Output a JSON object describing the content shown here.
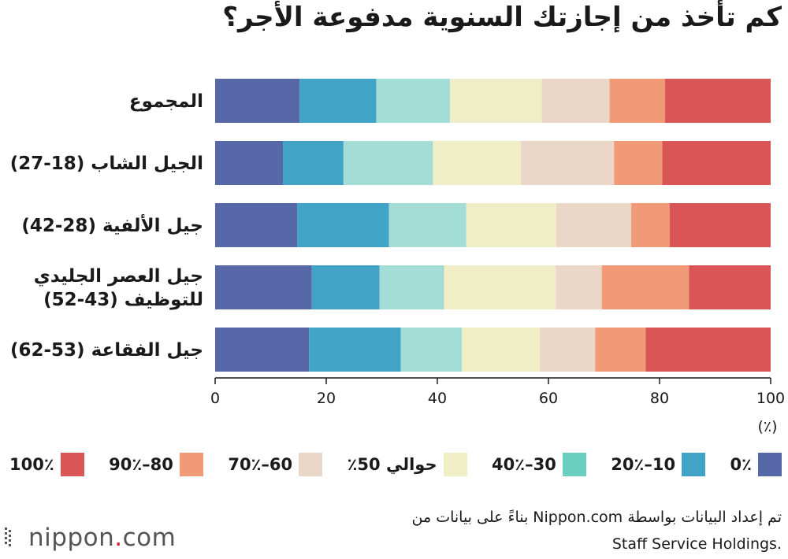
{
  "title": "كم تأخذ من إجازتك السنوية مدفوعة الأجر؟",
  "chart_data": {
    "type": "bar",
    "orientation": "horizontal",
    "stacked": true,
    "categories": [
      "المجموع",
      "الجيل الشاب (18-27)",
      "جيل الألفية (28-42)",
      "جيل العصر الجليدي للتوظيف (43-52)",
      "جيل الفقاعة (53-62)"
    ],
    "category_lines": [
      [
        "المجموع"
      ],
      [
        "الجيل الشاب (18-27)"
      ],
      [
        "جيل الألفية (28-42)"
      ],
      [
        "جيل العصر الجليدي",
        "للتوظيف (43-52)"
      ],
      [
        "جيل الفقاعة (53-62)"
      ]
    ],
    "series": [
      {
        "name": "0٪",
        "color": "#5668a8",
        "values": [
          15.2,
          12.2,
          14.8,
          17.4,
          16.9
        ]
      },
      {
        "name": "10–20٪",
        "color": "#41a3c6",
        "values": [
          13.8,
          10.9,
          16.5,
          12.2,
          16.5
        ]
      },
      {
        "name": "30–40٪",
        "color": "#a3ddd6",
        "values": [
          13.3,
          16.1,
          13.9,
          11.6,
          11.0
        ]
      },
      {
        "name": "حوالي 50٪",
        "color": "#f0eec6",
        "values": [
          16.5,
          15.8,
          16.2,
          20.1,
          14.0
        ]
      },
      {
        "name": "60–70٪",
        "color": "#ead7c8",
        "values": [
          12.2,
          16.8,
          13.5,
          8.3,
          10.0
        ]
      },
      {
        "name": "80–90٪",
        "color": "#f19a78",
        "values": [
          10.0,
          8.7,
          6.9,
          15.7,
          9.1
        ]
      },
      {
        "name": "100٪",
        "color": "#d95556",
        "values": [
          19.0,
          19.5,
          18.2,
          14.7,
          22.5
        ]
      }
    ],
    "xlim": [
      0,
      100
    ],
    "xticks": [
      0,
      20,
      40,
      60,
      80,
      100
    ],
    "xticks_text": [
      "0",
      "20",
      "40",
      "60",
      "80",
      "100"
    ],
    "xunit": "(٪)",
    "legend_placement": "bottom",
    "grid": false
  },
  "legend": [
    {
      "label": "0٪",
      "color": "#5668a8"
    },
    {
      "label": "10–20٪",
      "color": "#41a3c6"
    },
    {
      "label": "30–40٪",
      "color": "#6ccdc1"
    },
    {
      "label": "حوالي 50٪",
      "color": "#f0eec6"
    },
    {
      "label": "60–70٪",
      "color": "#ead7c8"
    },
    {
      "label": "80–90٪",
      "color": "#f19a78"
    },
    {
      "label": "100٪",
      "color": "#d95556"
    }
  ],
  "footer": {
    "line1": "تم إعداد البيانات بواسطة Nippon.com بناءً على بيانات من",
    "line2": "Staff Service Holdings."
  },
  "logo": {
    "name": "nippon",
    "dot": ".",
    "suffix": "com"
  }
}
